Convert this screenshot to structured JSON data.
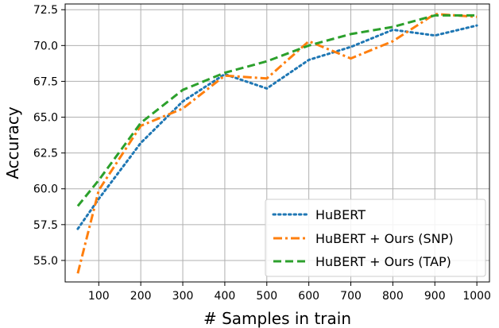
{
  "chart_data": {
    "type": "line",
    "xlabel": "# Samples in train",
    "ylabel": "Accuracy",
    "xlim": [
      20,
      1030
    ],
    "ylim": [
      53.5,
      72.9
    ],
    "x_ticks": [
      100,
      200,
      300,
      400,
      500,
      600,
      700,
      800,
      900,
      1000
    ],
    "y_ticks": [
      55.0,
      57.5,
      60.0,
      62.5,
      65.0,
      67.5,
      70.0,
      72.5
    ],
    "x_tick_labels": [
      "100",
      "200",
      "300",
      "400",
      "500",
      "600",
      "700",
      "800",
      "900",
      "1000"
    ],
    "y_tick_labels": [
      "55.0",
      "57.5",
      "60.0",
      "62.5",
      "65.0",
      "67.5",
      "70.0",
      "72.5"
    ],
    "grid": true,
    "legend_position": "bottom-right",
    "series": [
      {
        "name": "HuBERT",
        "color": "#1f77b4",
        "style": "dotted",
        "x": [
          50,
          100,
          200,
          300,
          400,
          500,
          600,
          700,
          800,
          900,
          1000
        ],
        "y": [
          57.2,
          59.3,
          63.2,
          66.1,
          68.0,
          67.0,
          69.0,
          69.9,
          71.1,
          70.7,
          71.4
        ]
      },
      {
        "name": "HuBERT + Ours (SNP)",
        "color": "#ff7f0e",
        "style": "dashdot",
        "x": [
          50,
          100,
          200,
          300,
          400,
          500,
          600,
          700,
          800,
          900,
          1000
        ],
        "y": [
          54.1,
          59.9,
          64.4,
          65.6,
          67.9,
          67.7,
          70.3,
          69.1,
          70.3,
          72.2,
          72.0
        ]
      },
      {
        "name": "HuBERT + Ours (TAP)",
        "color": "#2ca02c",
        "style": "dashed",
        "x": [
          50,
          100,
          200,
          300,
          400,
          500,
          600,
          700,
          800,
          900,
          1000
        ],
        "y": [
          58.8,
          60.6,
          64.6,
          66.9,
          68.1,
          68.9,
          70.0,
          70.8,
          71.3,
          72.1,
          72.1
        ]
      }
    ]
  }
}
